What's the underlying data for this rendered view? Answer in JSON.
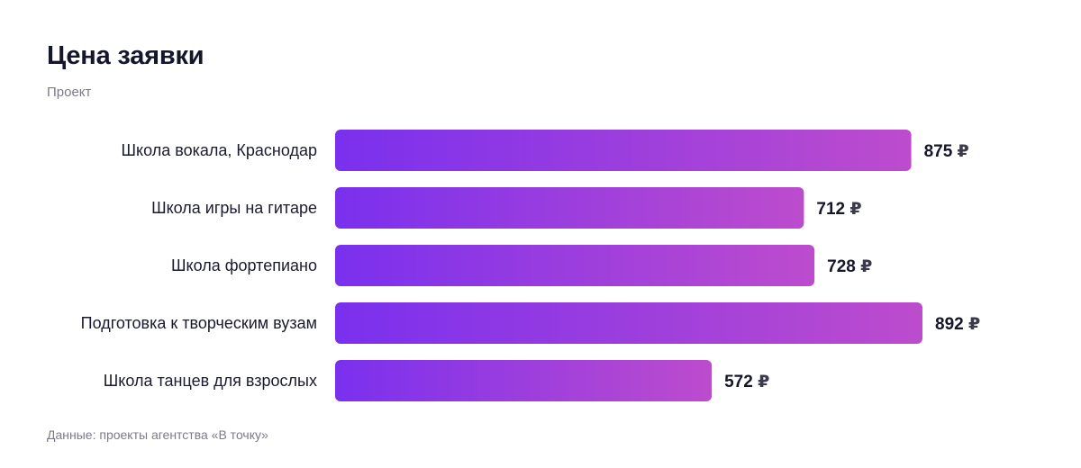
{
  "title": "Цена заявки",
  "subtitle": "Проект",
  "footer": "Данные: проекты агентства «В точку»",
  "colors": {
    "bar_start": "#7a30ee",
    "bar_end": "#bd4ccd"
  },
  "chart_data": {
    "type": "bar",
    "orientation": "horizontal",
    "unit": "₽",
    "categories": [
      "Школа вокала, Краснодар",
      "Школа игры на гитаре",
      "Школа фортепиано",
      "Подготовка к творческим вузам",
      "Школа танцев для взрослых"
    ],
    "values": [
      875,
      712,
      728,
      892,
      572
    ],
    "xlim": [
      0,
      892
    ],
    "grid": false
  }
}
